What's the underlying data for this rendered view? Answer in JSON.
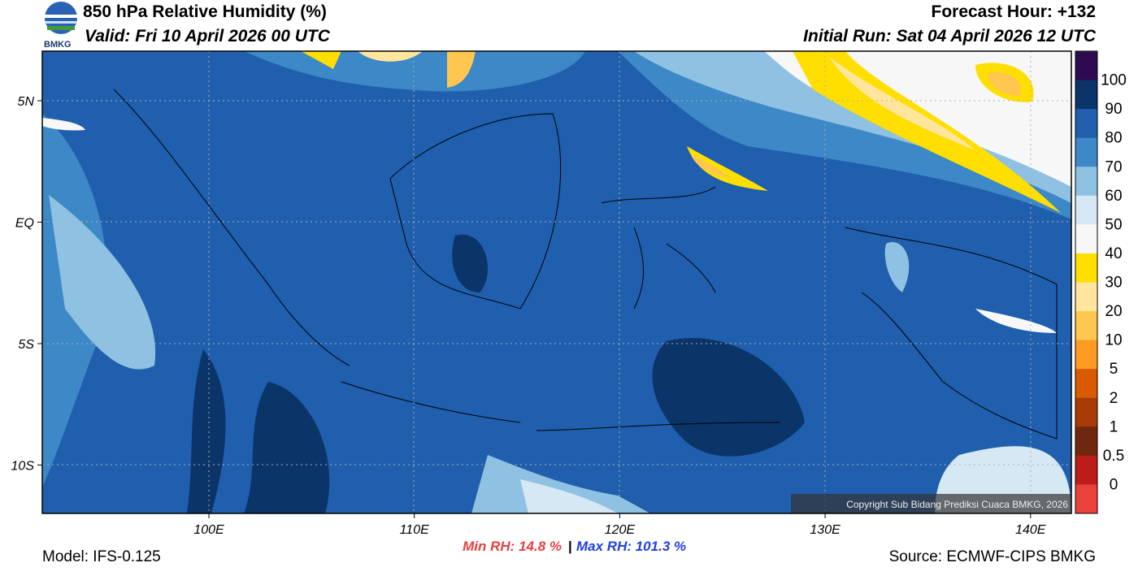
{
  "header": {
    "title": "850 hPa Relative Humidity (%)",
    "valid": "Valid: Fri 10 April 2026 00 UTC",
    "forecast_hour": "Forecast Hour: +132",
    "initial_run": "Initial Run: Sat 04 April 2026 12 UTC",
    "logo_text": "BMKG"
  },
  "map": {
    "lat_labels": [
      "5N",
      "EQ",
      "5S",
      "10S"
    ],
    "lon_labels": [
      "100E",
      "110E",
      "120E",
      "130E",
      "140E"
    ],
    "copyright": "Copyright Sub Bidang Prediksi Cuaca BMKG, 2026"
  },
  "colorbar": {
    "colors": [
      "#2e0b50",
      "#0b3469",
      "#1f5fae",
      "#3d88c6",
      "#8fc1e2",
      "#d5e8f4",
      "#f7f7f7",
      "#ffdf00",
      "#ffe69c",
      "#ffc650",
      "#ff9a22",
      "#d95a00",
      "#a83a06",
      "#6e2810",
      "#be1b1b",
      "#e8423a"
    ],
    "labels": [
      "100",
      "90",
      "80",
      "70",
      "60",
      "50",
      "40",
      "30",
      "20",
      "10",
      "5",
      "2",
      "1",
      "0.5",
      "0"
    ]
  },
  "footer": {
    "model": "Model: IFS-0.125",
    "min_rh": "Min RH:  14.8 %",
    "separator": "|",
    "max_rh": "Max RH: 101.3 %",
    "source": "Source: ECMWF-CIPS BMKG"
  }
}
